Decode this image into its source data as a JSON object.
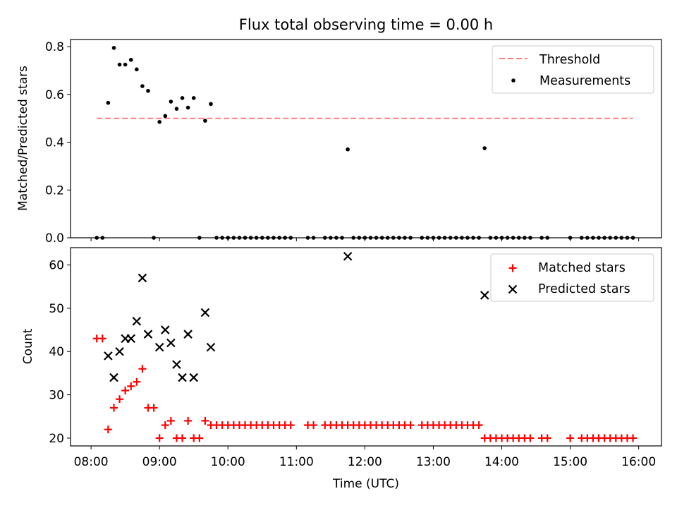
{
  "chart_data": [
    {
      "type": "scatter",
      "title": "Flux total observing time = 0.00 h",
      "xlabel": "",
      "ylabel": "Matched/Predicted stars",
      "xlim": [
        "07:42",
        "16:20"
      ],
      "ylim": [
        0,
        0.83
      ],
      "yticks": [
        0.0,
        0.2,
        0.4,
        0.6,
        0.8
      ],
      "legend": {
        "position": "top-right",
        "entries": [
          "Threshold",
          "Measurements"
        ]
      },
      "grid": false,
      "threshold": {
        "name": "Threshold",
        "value": 0.5,
        "x_start": "08:05",
        "x_end": "15:55",
        "color": "#ff7f7f",
        "style": "dashed"
      },
      "series": [
        {
          "name": "Measurements",
          "color": "#000000",
          "marker": "dot",
          "points": [
            [
              "08:05",
              0.0
            ],
            [
              "08:10",
              0.0
            ],
            [
              "08:15",
              0.565
            ],
            [
              "08:20",
              0.795
            ],
            [
              "08:25",
              0.725
            ],
            [
              "08:30",
              0.725
            ],
            [
              "08:35",
              0.745
            ],
            [
              "08:40",
              0.705
            ],
            [
              "08:45",
              0.635
            ],
            [
              "08:50",
              0.615
            ],
            [
              "08:55",
              0.0
            ],
            [
              "09:00",
              0.485
            ],
            [
              "09:05",
              0.51
            ],
            [
              "09:10",
              0.57
            ],
            [
              "09:15",
              0.54
            ],
            [
              "09:20",
              0.585
            ],
            [
              "09:25",
              0.545
            ],
            [
              "09:30",
              0.585
            ],
            [
              "09:35",
              0.0
            ],
            [
              "09:40",
              0.49
            ],
            [
              "09:45",
              0.56
            ],
            [
              "09:50",
              0.0
            ],
            [
              "09:55",
              0.0
            ],
            [
              "10:00",
              0.0
            ],
            [
              "10:05",
              0.0
            ],
            [
              "10:10",
              0.0
            ],
            [
              "10:15",
              0.0
            ],
            [
              "10:20",
              0.0
            ],
            [
              "10:25",
              0.0
            ],
            [
              "10:30",
              0.0
            ],
            [
              "10:35",
              0.0
            ],
            [
              "10:40",
              0.0
            ],
            [
              "10:45",
              0.0
            ],
            [
              "10:50",
              0.0
            ],
            [
              "10:55",
              0.0
            ],
            [
              "11:10",
              0.0
            ],
            [
              "11:15",
              0.0
            ],
            [
              "11:25",
              0.0
            ],
            [
              "11:30",
              0.0
            ],
            [
              "11:35",
              0.0
            ],
            [
              "11:40",
              0.0
            ],
            [
              "11:45",
              0.37
            ],
            [
              "11:50",
              0.0
            ],
            [
              "11:55",
              0.0
            ],
            [
              "12:00",
              0.0
            ],
            [
              "12:05",
              0.0
            ],
            [
              "12:10",
              0.0
            ],
            [
              "12:15",
              0.0
            ],
            [
              "12:20",
              0.0
            ],
            [
              "12:25",
              0.0
            ],
            [
              "12:30",
              0.0
            ],
            [
              "12:35",
              0.0
            ],
            [
              "12:40",
              0.0
            ],
            [
              "12:50",
              0.0
            ],
            [
              "12:55",
              0.0
            ],
            [
              "13:00",
              0.0
            ],
            [
              "13:05",
              0.0
            ],
            [
              "13:10",
              0.0
            ],
            [
              "13:15",
              0.0
            ],
            [
              "13:20",
              0.0
            ],
            [
              "13:25",
              0.0
            ],
            [
              "13:30",
              0.0
            ],
            [
              "13:35",
              0.0
            ],
            [
              "13:40",
              0.0
            ],
            [
              "13:45",
              0.375
            ],
            [
              "13:50",
              0.0
            ],
            [
              "13:55",
              0.0
            ],
            [
              "14:00",
              0.0
            ],
            [
              "14:05",
              0.0
            ],
            [
              "14:10",
              0.0
            ],
            [
              "14:15",
              0.0
            ],
            [
              "14:20",
              0.0
            ],
            [
              "14:25",
              0.0
            ],
            [
              "14:35",
              0.0
            ],
            [
              "14:40",
              0.0
            ],
            [
              "15:00",
              0.0
            ],
            [
              "15:10",
              0.0
            ],
            [
              "15:15",
              0.0
            ],
            [
              "15:20",
              0.0
            ],
            [
              "15:25",
              0.0
            ],
            [
              "15:30",
              0.0
            ],
            [
              "15:35",
              0.0
            ],
            [
              "15:40",
              0.0
            ],
            [
              "15:45",
              0.0
            ],
            [
              "15:50",
              0.0
            ],
            [
              "15:55",
              0.0
            ]
          ]
        }
      ]
    },
    {
      "type": "scatter",
      "title": "",
      "xlabel": "Time (UTC)",
      "ylabel": "Count",
      "xlim": [
        "07:42",
        "16:20"
      ],
      "ylim": [
        18.2,
        64
      ],
      "yticks": [
        20,
        30,
        40,
        50,
        60
      ],
      "xticks": [
        "08:00",
        "09:00",
        "10:00",
        "11:00",
        "12:00",
        "13:00",
        "14:00",
        "15:00",
        "16:00"
      ],
      "legend": {
        "position": "top-right",
        "entries": [
          "Matched stars",
          "Predicted stars"
        ]
      },
      "grid": false,
      "series": [
        {
          "name": "Matched stars",
          "color": "#ff0000",
          "marker": "plus",
          "points": [
            [
              "08:05",
              43
            ],
            [
              "08:10",
              43
            ],
            [
              "08:15",
              22
            ],
            [
              "08:20",
              27
            ],
            [
              "08:25",
              29
            ],
            [
              "08:30",
              31
            ],
            [
              "08:35",
              32
            ],
            [
              "08:40",
              33
            ],
            [
              "08:45",
              36
            ],
            [
              "08:50",
              27
            ],
            [
              "08:55",
              27
            ],
            [
              "09:00",
              20
            ],
            [
              "09:05",
              23
            ],
            [
              "09:10",
              24
            ],
            [
              "09:15",
              20
            ],
            [
              "09:20",
              20
            ],
            [
              "09:25",
              24
            ],
            [
              "09:30",
              20
            ],
            [
              "09:35",
              20
            ],
            [
              "09:40",
              24
            ],
            [
              "09:45",
              23
            ],
            [
              "09:50",
              23
            ],
            [
              "09:55",
              23
            ],
            [
              "10:00",
              23
            ],
            [
              "10:05",
              23
            ],
            [
              "10:10",
              23
            ],
            [
              "10:15",
              23
            ],
            [
              "10:20",
              23
            ],
            [
              "10:25",
              23
            ],
            [
              "10:30",
              23
            ],
            [
              "10:35",
              23
            ],
            [
              "10:40",
              23
            ],
            [
              "10:45",
              23
            ],
            [
              "10:50",
              23
            ],
            [
              "10:55",
              23
            ],
            [
              "11:10",
              23
            ],
            [
              "11:15",
              23
            ],
            [
              "11:25",
              23
            ],
            [
              "11:30",
              23
            ],
            [
              "11:35",
              23
            ],
            [
              "11:40",
              23
            ],
            [
              "11:45",
              23
            ],
            [
              "11:50",
              23
            ],
            [
              "11:55",
              23
            ],
            [
              "12:00",
              23
            ],
            [
              "12:05",
              23
            ],
            [
              "12:10",
              23
            ],
            [
              "12:15",
              23
            ],
            [
              "12:20",
              23
            ],
            [
              "12:25",
              23
            ],
            [
              "12:30",
              23
            ],
            [
              "12:35",
              23
            ],
            [
              "12:40",
              23
            ],
            [
              "12:50",
              23
            ],
            [
              "12:55",
              23
            ],
            [
              "13:00",
              23
            ],
            [
              "13:05",
              23
            ],
            [
              "13:10",
              23
            ],
            [
              "13:15",
              23
            ],
            [
              "13:20",
              23
            ],
            [
              "13:25",
              23
            ],
            [
              "13:30",
              23
            ],
            [
              "13:35",
              23
            ],
            [
              "13:40",
              23
            ],
            [
              "13:45",
              20
            ],
            [
              "13:50",
              20
            ],
            [
              "13:55",
              20
            ],
            [
              "14:00",
              20
            ],
            [
              "14:05",
              20
            ],
            [
              "14:10",
              20
            ],
            [
              "14:15",
              20
            ],
            [
              "14:20",
              20
            ],
            [
              "14:25",
              20
            ],
            [
              "14:35",
              20
            ],
            [
              "14:40",
              20
            ],
            [
              "15:00",
              20
            ],
            [
              "15:10",
              20
            ],
            [
              "15:15",
              20
            ],
            [
              "15:20",
              20
            ],
            [
              "15:25",
              20
            ],
            [
              "15:30",
              20
            ],
            [
              "15:35",
              20
            ],
            [
              "15:40",
              20
            ],
            [
              "15:45",
              20
            ],
            [
              "15:50",
              20
            ],
            [
              "15:55",
              20
            ]
          ]
        },
        {
          "name": "Predicted stars",
          "color": "#000000",
          "marker": "x",
          "points": [
            [
              "08:15",
              39
            ],
            [
              "08:20",
              34
            ],
            [
              "08:25",
              40
            ],
            [
              "08:30",
              43
            ],
            [
              "08:35",
              43
            ],
            [
              "08:40",
              47
            ],
            [
              "08:45",
              57
            ],
            [
              "08:50",
              44
            ],
            [
              "09:00",
              41
            ],
            [
              "09:05",
              45
            ],
            [
              "09:10",
              42
            ],
            [
              "09:15",
              37
            ],
            [
              "09:20",
              34
            ],
            [
              "09:25",
              44
            ],
            [
              "09:30",
              34
            ],
            [
              "09:40",
              49
            ],
            [
              "09:45",
              41
            ],
            [
              "11:45",
              62
            ],
            [
              "13:45",
              53
            ]
          ]
        }
      ]
    }
  ]
}
